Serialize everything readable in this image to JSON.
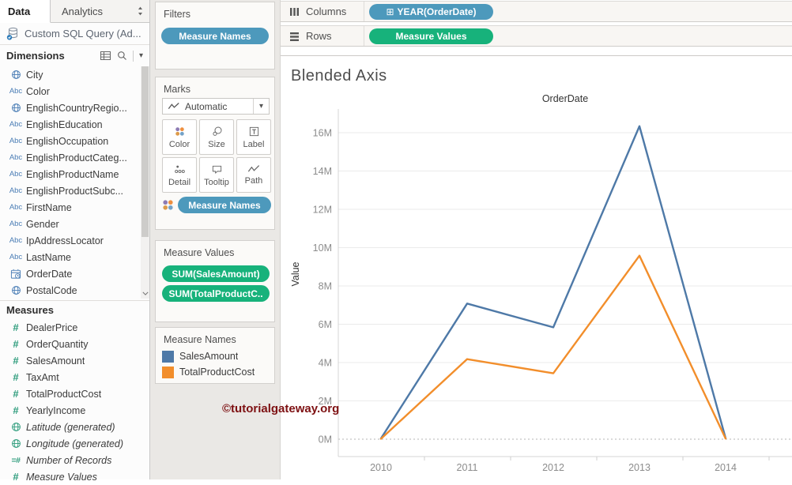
{
  "data_pane": {
    "tabs": [
      {
        "label": "Data"
      },
      {
        "label": "Analytics"
      }
    ],
    "connection": "Custom SQL Query (Ad...",
    "dimensions": {
      "header": "Dimensions",
      "items": [
        {
          "icon": "globe",
          "label": "City"
        },
        {
          "icon": "abc",
          "label": "Color"
        },
        {
          "icon": "globe",
          "label": "EnglishCountryRegio..."
        },
        {
          "icon": "abc",
          "label": "EnglishEducation"
        },
        {
          "icon": "abc",
          "label": "EnglishOccupation"
        },
        {
          "icon": "abc",
          "label": "EnglishProductCateg..."
        },
        {
          "icon": "abc",
          "label": "EnglishProductName"
        },
        {
          "icon": "abc",
          "label": "EnglishProductSubc..."
        },
        {
          "icon": "abc",
          "label": "FirstName"
        },
        {
          "icon": "abc",
          "label": "Gender"
        },
        {
          "icon": "abc",
          "label": "IpAddressLocator"
        },
        {
          "icon": "abc",
          "label": "LastName"
        },
        {
          "icon": "calendar",
          "label": "OrderDate"
        },
        {
          "icon": "globe",
          "label": "PostalCode"
        }
      ]
    },
    "measures": {
      "header": "Measures",
      "items": [
        {
          "icon": "hash",
          "label": "DealerPrice"
        },
        {
          "icon": "hash",
          "label": "OrderQuantity"
        },
        {
          "icon": "hash",
          "label": "SalesAmount"
        },
        {
          "icon": "hash",
          "label": "TaxAmt"
        },
        {
          "icon": "hash",
          "label": "TotalProductCost"
        },
        {
          "icon": "hash",
          "label": "YearlyIncome"
        },
        {
          "icon": "globe",
          "label": "Latitude (generated)",
          "generated": true
        },
        {
          "icon": "globe",
          "label": "Longitude (generated)",
          "generated": true
        },
        {
          "icon": "hash-eq",
          "label": "Number of Records",
          "generated": true
        },
        {
          "icon": "hash",
          "label": "Measure Values",
          "generated": true
        }
      ]
    }
  },
  "cards": {
    "filters": {
      "title": "Filters",
      "pills": [
        {
          "label": "Measure Names"
        }
      ]
    },
    "marks": {
      "title": "Marks",
      "mark_type": "Automatic",
      "buttons": [
        {
          "icon": "color",
          "label": "Color"
        },
        {
          "icon": "size",
          "label": "Size"
        },
        {
          "icon": "label",
          "label": "Label"
        },
        {
          "icon": "detail",
          "label": "Detail"
        },
        {
          "icon": "tooltip",
          "label": "Tooltip"
        },
        {
          "icon": "path",
          "label": "Path"
        }
      ],
      "pill": {
        "label": "Measure Names"
      }
    },
    "measure_values": {
      "title": "Measure Values",
      "pills": [
        {
          "label": "SUM(SalesAmount)"
        },
        {
          "label": "SUM(TotalProductC.."
        }
      ]
    },
    "legend": {
      "title": "Measure Names",
      "entries": [
        {
          "label": "SalesAmount",
          "color": "#4e79a7"
        },
        {
          "label": "TotalProductCost",
          "color": "#f28e2b"
        }
      ]
    }
  },
  "shelves": {
    "columns": {
      "label": "Columns",
      "pill": {
        "icon_glyph": "⊞",
        "label": "YEAR(OrderDate)"
      }
    },
    "rows": {
      "label": "Rows",
      "pill": {
        "label": "Measure Values"
      }
    }
  },
  "sheet": {
    "title": "Blended Axis"
  },
  "watermark": "©tutorialgateway.org",
  "chart_data": {
    "type": "line",
    "title": "OrderDate",
    "ylabel": "Value",
    "categories": [
      "2010",
      "2011",
      "2012",
      "2013",
      "2014"
    ],
    "series": [
      {
        "name": "SalesAmount",
        "color": "#4e79a7",
        "values": [
          0.04,
          7.08,
          5.84,
          16.34,
          0.05
        ]
      },
      {
        "name": "TotalProductCost",
        "color": "#f28e2b",
        "values": [
          0.02,
          4.18,
          3.44,
          9.58,
          0.03
        ]
      }
    ],
    "unit": "M",
    "ylim": [
      0,
      16
    ],
    "yticks": [
      "0M",
      "2M",
      "4M",
      "6M",
      "8M",
      "10M",
      "12M",
      "14M",
      "16M"
    ],
    "grid": true,
    "legend_position": "left-card"
  },
  "icons": {
    "caret": "▾",
    "abc_glyph": "Abc",
    "hash_glyph": "#",
    "hash_eq_glyph": "=#"
  },
  "colors": {
    "pill_blue": "#4d99bc",
    "pill_green": "#17b27b",
    "line_blue": "#4e79a7",
    "line_orange": "#f28e2b",
    "watermark": "#7e1113"
  }
}
